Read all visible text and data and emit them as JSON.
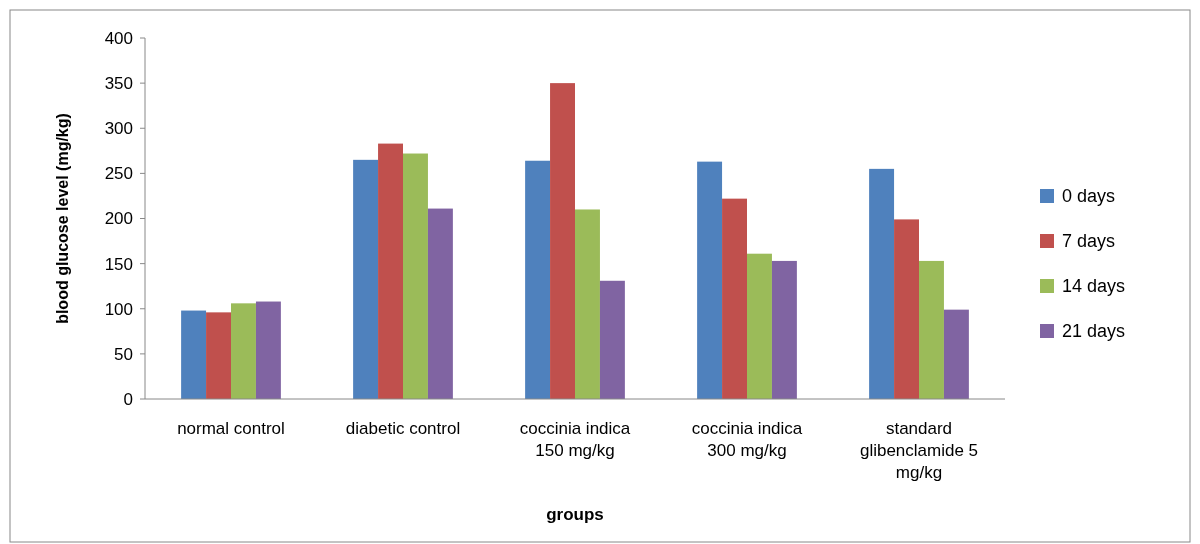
{
  "chart_data": {
    "type": "bar",
    "xlabel": "groups",
    "ylabel": "blood glucose level (mg/kg)",
    "categories": [
      "normal control",
      "diabetic control",
      "coccinia indica 150 mg/kg",
      "coccinia indica 300 mg/kg",
      "standard glibenclamide 5 mg/kg"
    ],
    "series": [
      {
        "name": "0 days",
        "color": "#4f81bd",
        "values": [
          98,
          265,
          264,
          263,
          255
        ]
      },
      {
        "name": "7 days",
        "color": "#c0504d",
        "values": [
          96,
          283,
          350,
          222,
          199
        ]
      },
      {
        "name": "14 days",
        "color": "#9bbb59",
        "values": [
          106,
          272,
          210,
          161,
          153
        ]
      },
      {
        "name": "21 days",
        "color": "#8064a2",
        "values": [
          108,
          211,
          131,
          153,
          99
        ]
      }
    ],
    "ylim": [
      0,
      400
    ],
    "yticks": [
      0,
      50,
      100,
      150,
      200,
      250,
      300,
      350,
      400
    ],
    "grid": false,
    "legend": "right"
  }
}
